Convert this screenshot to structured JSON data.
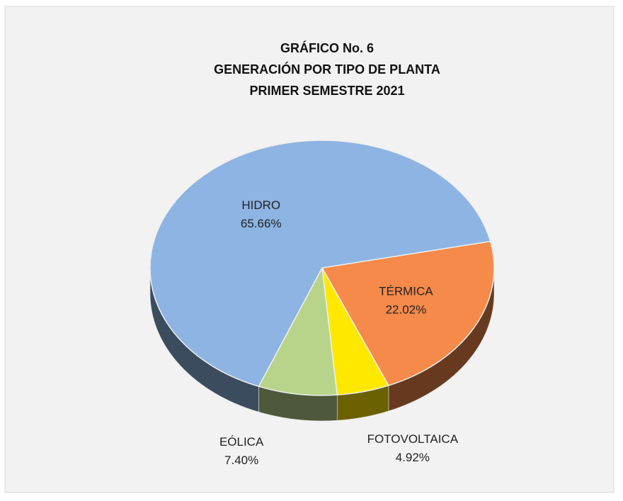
{
  "chart_data": {
    "type": "pie",
    "title": [
      "GRÁFICO  No. 6",
      "GENERACIÓN POR TIPO DE PLANTA",
      "PRIMER  SEMESTRE  2021"
    ],
    "categories": [
      "TÉRMICA",
      "FOTOVOLTAICA",
      "EÓLICA",
      "HIDRO"
    ],
    "values": [
      22.02,
      4.92,
      7.4,
      65.66
    ],
    "value_labels": [
      "22.02%",
      "4.92%",
      "7.40%",
      "65.66%"
    ],
    "colors": [
      "#f58a4a",
      "#ffe800",
      "#b8d48a",
      "#8db4e2"
    ]
  }
}
